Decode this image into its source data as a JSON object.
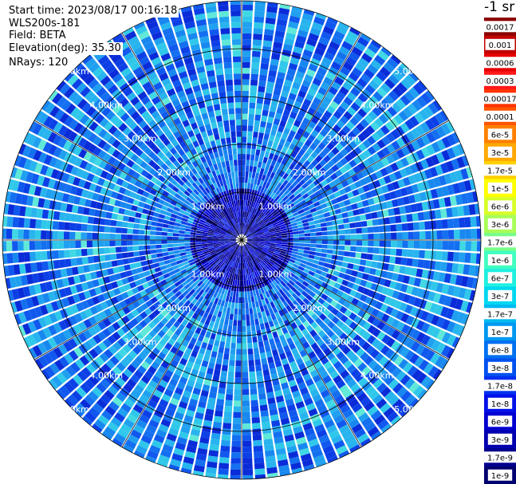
{
  "info": {
    "start_time": "Start time: 2023/08/17 00:16:18",
    "instrument": "WLS200s-181",
    "field": "Field: BETA",
    "elevation": "Elevation(deg): 35.30",
    "nrays": "NRays: 120"
  },
  "colorbar": {
    "unit_label": "-1 sr",
    "ticks": [
      "0.0017",
      "0.001",
      "0.0006",
      "0.0003",
      "0.00017",
      "0.0001",
      "6e-5",
      "3e-5",
      "1.7e-5",
      "1e-5",
      "6e-6",
      "3e-6",
      "1.7e-6",
      "1e-6",
      "6e-7",
      "3e-7",
      "1.7e-7",
      "1e-7",
      "6e-8",
      "3e-8",
      "1.7e-8",
      "1e-8",
      "6e-9",
      "3e-9",
      "1.7e-9",
      "1e-9"
    ],
    "colors": [
      "#8b0000",
      "#c00000",
      "#e60000",
      "#ff1a1a",
      "#ff3300",
      "#ff5500",
      "#ff8000",
      "#ffa800",
      "#ffd000",
      "#ffff00",
      "#d8ff28",
      "#a8ff58",
      "#78ff88",
      "#40ffc0",
      "#20f0e0",
      "#00d8f0",
      "#00b8f0",
      "#0098f0",
      "#0070f0",
      "#0050f0",
      "#0030f0",
      "#0010e8",
      "#0000d0",
      "#0000b0",
      "#000090",
      "#000070"
    ]
  },
  "chart_data": {
    "type": "heatmap",
    "projection": "polar (PPI scan)",
    "field": "BETA",
    "n_rays": 120,
    "elevation_deg": 35.3,
    "range_rings_km": [
      1.0,
      2.0,
      3.0,
      4.0,
      5.0
    ],
    "range_labels": [
      "1.00km",
      "2.00km",
      "3.00km",
      "4.00km",
      "5.00km"
    ],
    "azimuth_grid_deg": [
      0,
      30,
      60,
      90,
      120,
      150,
      180,
      210,
      240,
      270,
      300,
      330
    ],
    "colorbar_scale": "log",
    "value_range": [
      1e-09,
      0.0017
    ],
    "dominant_values": {
      "near_range_km_0_to_1": "1e-9 to 6e-9",
      "range_km_1_to_2": "1.7e-8 to 1e-7",
      "range_km_2_to_5": "1e-8 to 1e-7",
      "isolated_maxima": "about 3e-7 to 1.7e-7"
    }
  }
}
